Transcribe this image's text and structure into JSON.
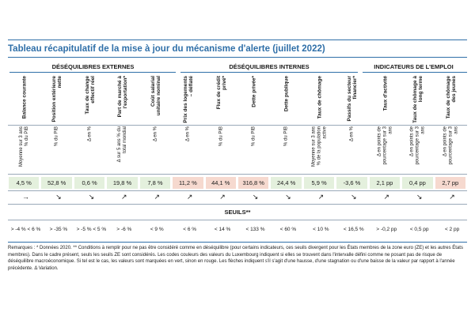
{
  "title": "Tableau récapitulatif de la mise à jour du mécanisme d'alerte (juillet 2022)",
  "groups": [
    "DÉSÉQUILIBRES EXTERNES",
    "DÉSÉQUILIBRES INTERNES",
    "INDICATEURS DE L'EMPLOI"
  ],
  "columns": [
    {
      "header": "Balance courante",
      "unit": "Moyenne sur 3 ans % du PIB",
      "value": "4,5 %",
      "color": "#e4f0dd",
      "arrow": "→",
      "threshold": "> -4 % < 6 %"
    },
    {
      "header": "Position extérieure nette",
      "unit": "% du PIB",
      "value": "52,8 %",
      "color": "#e4f0dd",
      "arrow": "↘",
      "threshold": "> -35 %"
    },
    {
      "header": "Taux de change effectif réel",
      "unit": "Δ en %",
      "value": "0,6 %",
      "color": "#e4f0dd",
      "arrow": "↘",
      "threshold": "> -5 % < 5 %"
    },
    {
      "header": "Part de marché à l'exportation*",
      "unit": "Δ sur 5 ans % du total mondial",
      "value": "19,8 %",
      "color": "#e4f0dd",
      "arrow": "↗",
      "threshold": "> -6 %"
    },
    {
      "header": "Coût salarial unitaire nominal",
      "unit": "Δ en %",
      "value": "7,8 %",
      "color": "#e4f0dd",
      "arrow": "↗",
      "threshold": "< 9 %"
    },
    {
      "header": "Prix des logements – déflaté",
      "unit": "Δ en %",
      "value": "11,2 %",
      "color": "#f6d9cf",
      "arrow": "↗",
      "threshold": "< 6 %"
    },
    {
      "header": "Flux de crédit privé*",
      "unit": "% du PIB",
      "value": "44,1 %",
      "color": "#f6d9cf",
      "arrow": "↗",
      "threshold": "< 14 %"
    },
    {
      "header": "Dette privée*",
      "unit": "% du PIB",
      "value": "316,8 %",
      "color": "#f6d9cf",
      "arrow": "↘",
      "threshold": "< 133 %"
    },
    {
      "header": "Dette publique",
      "unit": "% du PIB",
      "value": "24,4 %",
      "color": "#e4f0dd",
      "arrow": "↘",
      "threshold": "< 60 %"
    },
    {
      "header": "Taux de chômage",
      "unit": "Moyenne sur 3 ans % de la population active",
      "value": "5,9 %",
      "color": "#e4f0dd",
      "arrow": "↗",
      "threshold": "< 10 %"
    },
    {
      "header": "Passifs du secteur financier*",
      "unit": "Δ en %",
      "value": "-3,6 %",
      "color": "#e4f0dd",
      "arrow": "↘",
      "threshold": "< 16,5 %"
    },
    {
      "header": "Taux d'activité",
      "unit": "Δ en points de pourcentage sur 3 ans",
      "value": "2,1 pp",
      "color": "#e4f0dd",
      "arrow": "↗",
      "threshold": "> -0,2 pp"
    },
    {
      "header": "Taux de chômage à long terme",
      "unit": "Δ en points de pourcentage sur 3 ans",
      "value": "0,4 pp",
      "color": "#e4f0dd",
      "arrow": "↘",
      "threshold": "< 0,5 pp"
    },
    {
      "header": "Taux de chômage des jeunes",
      "unit": "Δ en points de pourcentage sur 3 ans",
      "value": "2,7 pp",
      "color": "#f6d9cf",
      "arrow": "↗",
      "threshold": "< 2 pp"
    }
  ],
  "seuils_label": "SEUILS**",
  "note": "Remarques : * Données 2020. ** Conditions à remplir pour ne pas être considéré comme en déséquilibre (pour certains indicateurs, ces seuils divergent pour les États membres de la zone euro (ZE) et les autres États membres). Dans le cadre présent, seuls les seuils ZE sont considérés. Les codes couleurs des valeurs du Luxembourg indiquent si elles se trouvent dans l'intervalle défini comme ne posant pas de risque de déséquilibre macroéconomique. Si tel est le cas, les valeurs sont marquées en vert, sinon en rouge. Les flèches indiquent s'il s'agit d'une hausse, d'une stagnation ou d'une baisse de la valeur par rapport à l'année précédente. Δ Variation."
}
